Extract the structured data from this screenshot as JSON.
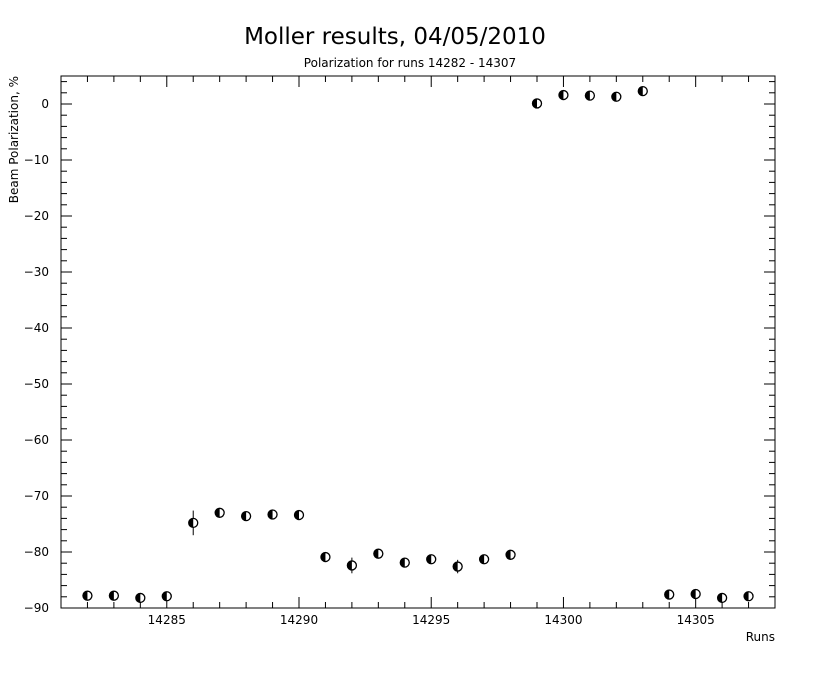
{
  "chart_data": {
    "type": "scatter",
    "title": "Moller results, 04/05/2010",
    "subtitle": "Polarization for runs 14282 - 14307",
    "xlabel": "Runs",
    "ylabel": "Beam Polarization, %",
    "xlim": [
      14281,
      14308
    ],
    "ylim": [
      -90,
      5
    ],
    "xticks": [
      14285,
      14290,
      14295,
      14300,
      14305
    ],
    "yticks": [
      0,
      -10,
      -20,
      -30,
      -40,
      -50,
      -60,
      -70,
      -80,
      -90
    ],
    "grid": false,
    "marker": "half-filled circle",
    "points": [
      {
        "x": 14282,
        "y": -87.8,
        "err": 0.8
      },
      {
        "x": 14283,
        "y": -87.8,
        "err": 0.8
      },
      {
        "x": 14284,
        "y": -88.2,
        "err": 0.8
      },
      {
        "x": 14285,
        "y": -87.9,
        "err": 0.8
      },
      {
        "x": 14286,
        "y": -74.8,
        "err": 2.2
      },
      {
        "x": 14287,
        "y": -73.0,
        "err": 0.8
      },
      {
        "x": 14288,
        "y": -73.6,
        "err": 0.8
      },
      {
        "x": 14289,
        "y": -73.3,
        "err": 0.8
      },
      {
        "x": 14290,
        "y": -73.4,
        "err": 0.8
      },
      {
        "x": 14291,
        "y": -80.9,
        "err": 0.8
      },
      {
        "x": 14292,
        "y": -82.4,
        "err": 1.4
      },
      {
        "x": 14293,
        "y": -80.3,
        "err": 0.8
      },
      {
        "x": 14294,
        "y": -81.9,
        "err": 0.8
      },
      {
        "x": 14295,
        "y": -81.3,
        "err": 0.8
      },
      {
        "x": 14296,
        "y": -82.6,
        "err": 1.2
      },
      {
        "x": 14297,
        "y": -81.3,
        "err": 0.8
      },
      {
        "x": 14298,
        "y": -80.5,
        "err": 0.8
      },
      {
        "x": 14299,
        "y": 0.1,
        "err": 0.8
      },
      {
        "x": 14300,
        "y": 1.6,
        "err": 0.8
      },
      {
        "x": 14301,
        "y": 1.5,
        "err": 0.8
      },
      {
        "x": 14302,
        "y": 1.3,
        "err": 0.8
      },
      {
        "x": 14303,
        "y": 2.3,
        "err": 0.8
      },
      {
        "x": 14304,
        "y": -87.6,
        "err": 0.8
      },
      {
        "x": 14305,
        "y": -87.5,
        "err": 0.8
      },
      {
        "x": 14306,
        "y": -88.2,
        "err": 0.8
      },
      {
        "x": 14307,
        "y": -87.9,
        "err": 0.8
      }
    ]
  }
}
